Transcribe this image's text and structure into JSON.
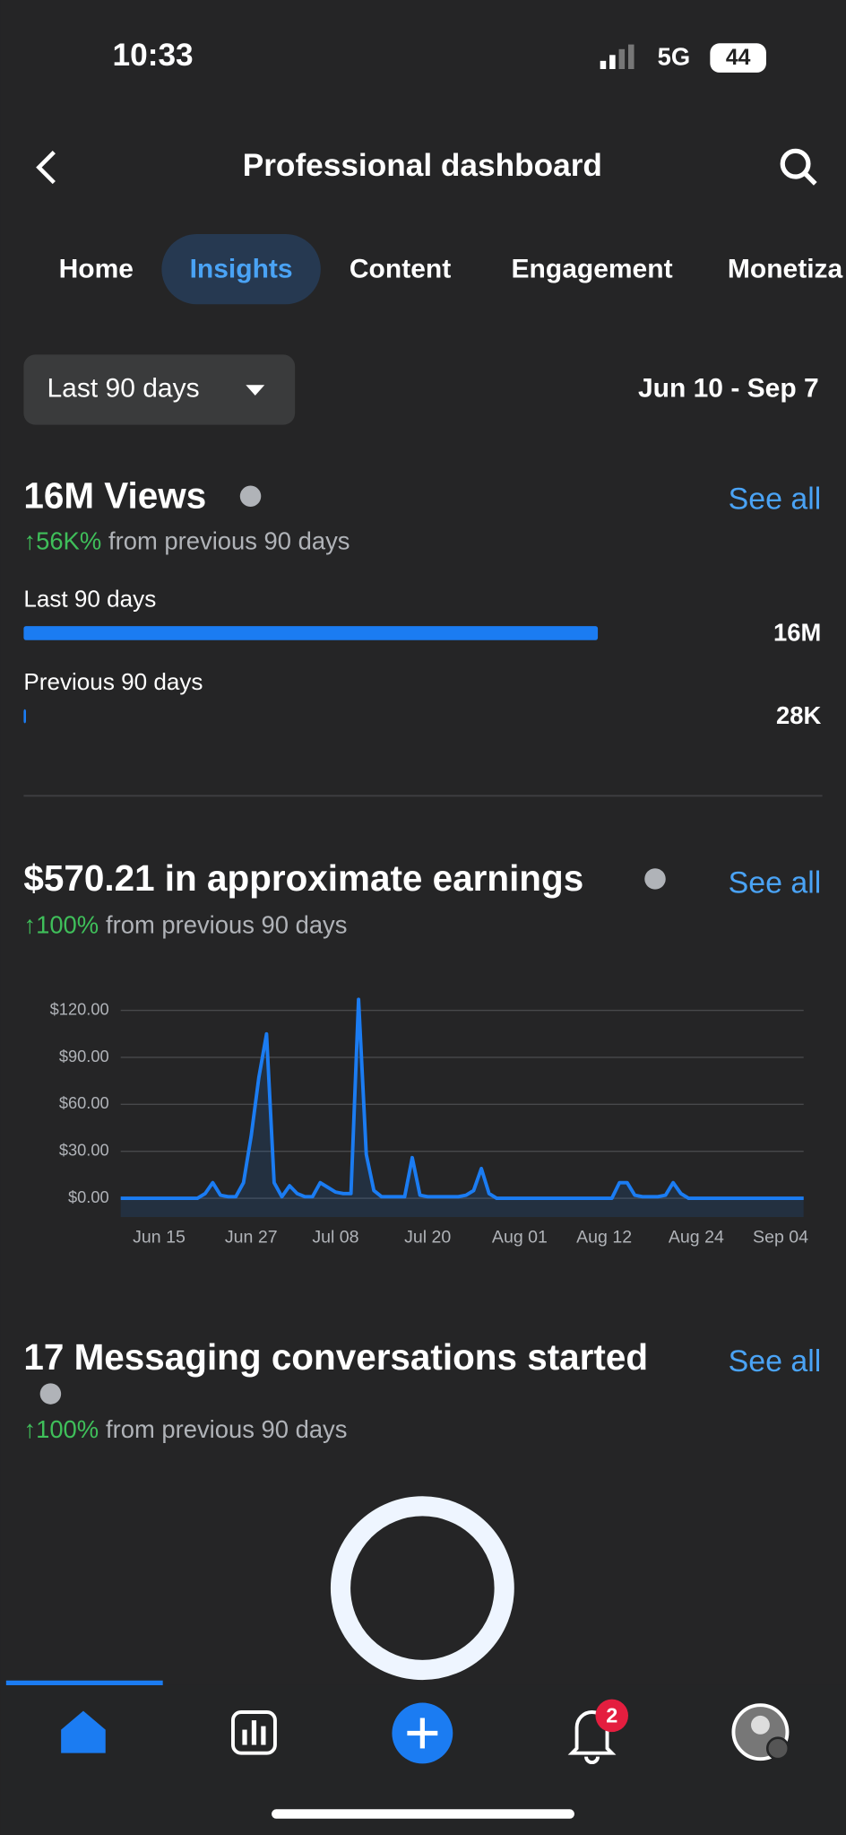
{
  "status_bar": {
    "time": "10:33",
    "network": "5G",
    "battery": "44"
  },
  "header": {
    "title": "Professional dashboard"
  },
  "tabs": {
    "items": [
      "Home",
      "Insights",
      "Content",
      "Engagement",
      "Monetiza"
    ],
    "active": 1
  },
  "filter": {
    "range": "Last 90 days",
    "dates": "Jun 10 - Sep 7"
  },
  "views": {
    "title": "16M Views",
    "see_all": "See all",
    "change": "↑56K%",
    "change_text": "from previous 90 days",
    "rows": [
      {
        "label": "Last 90 days",
        "value": 16000000,
        "value_label": "16M"
      },
      {
        "label": "Previous 90 days",
        "value": 28000,
        "value_label": "28K"
      }
    ]
  },
  "earnings": {
    "title": "$570.21 in approximate earnings",
    "see_all": "See all",
    "change": "↑100%",
    "change_text": "from previous 90 days"
  },
  "chart_data": {
    "type": "line",
    "categories": [
      null,
      null,
      null,
      null,
      null,
      "Jun 15",
      null,
      null,
      null,
      null,
      null,
      null,
      null,
      null,
      null,
      null,
      null,
      "Jun 27",
      null,
      null,
      null,
      null,
      null,
      null,
      null,
      null,
      null,
      null,
      "Jul 08",
      null,
      null,
      null,
      null,
      null,
      null,
      null,
      null,
      null,
      null,
      null,
      "Jul 20",
      null,
      null,
      null,
      null,
      null,
      null,
      null,
      null,
      null,
      null,
      null,
      "Aug 01",
      null,
      null,
      null,
      null,
      null,
      null,
      null,
      null,
      null,
      null,
      "Aug 12",
      null,
      null,
      null,
      null,
      null,
      null,
      null,
      null,
      null,
      null,
      null,
      "Aug 24",
      null,
      null,
      null,
      null,
      null,
      null,
      null,
      null,
      null,
      null,
      "Sep 04",
      null,
      null,
      null
    ],
    "series": [
      {
        "color": "#1b7cf2",
        "values": [
          0,
          0,
          0,
          0,
          0,
          0,
          0,
          0,
          0,
          0,
          0,
          3,
          10,
          2,
          1,
          1,
          10,
          40,
          77,
          105,
          10,
          1,
          8,
          3,
          1,
          1,
          10,
          7,
          4,
          3,
          3,
          127,
          28,
          5,
          1,
          1,
          1,
          1,
          26,
          2,
          1,
          1,
          1,
          1,
          1,
          2,
          5,
          19,
          3,
          0,
          0,
          0,
          0,
          0,
          0,
          0,
          0,
          0,
          0,
          0,
          0,
          0,
          0,
          0,
          0,
          10,
          10,
          2,
          1,
          1,
          1,
          2,
          10,
          3,
          0,
          0,
          0,
          0,
          0,
          0,
          0,
          0,
          0,
          0,
          0,
          0,
          0,
          0,
          0,
          0
        ]
      }
    ],
    "ylim": [
      -12,
      130
    ],
    "yticks": [
      {
        "value": 0,
        "label": "$0.00"
      },
      {
        "value": 30,
        "label": "$30.00"
      },
      {
        "value": 60,
        "label": "$60.00"
      },
      {
        "value": 90,
        "label": "$90.00"
      },
      {
        "value": 120,
        "label": "$120.00"
      }
    ],
    "grid": true
  },
  "messaging": {
    "title": "17 Messaging conversations started",
    "see_all": "See all",
    "change": "↑100%",
    "change_text": "from previous 90 days"
  },
  "nav": {
    "badge": "2"
  }
}
